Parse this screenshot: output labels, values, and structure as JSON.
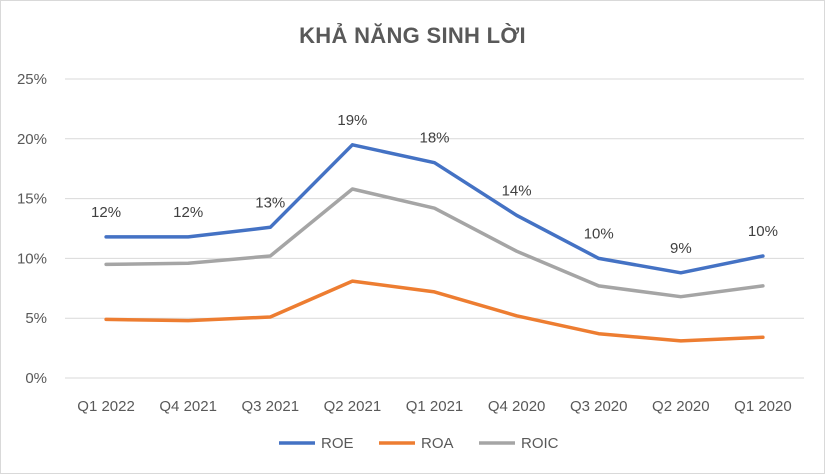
{
  "chart_data": {
    "type": "line",
    "title": "KHẢ NĂNG SINH LỜI",
    "categories": [
      "Q1 2022",
      "Q4 2021",
      "Q3 2021",
      "Q2 2021",
      "Q1 2021",
      "Q4 2020",
      "Q3 2020",
      "Q2 2020",
      "Q1 2020"
    ],
    "ylim": [
      0,
      25
    ],
    "yticks": [
      "0%",
      "5%",
      "10%",
      "15%",
      "20%",
      "25%"
    ],
    "ytick_values": [
      0,
      5,
      10,
      15,
      20,
      25
    ],
    "grid": true,
    "legend": "bottom",
    "series": [
      {
        "name": "ROE",
        "color": "#4472C4",
        "values": [
          11.8,
          11.8,
          12.6,
          19.5,
          18.0,
          13.6,
          10.0,
          8.8,
          10.2
        ],
        "labels": [
          "12%",
          "12%",
          "13%",
          "19%",
          "18%",
          "14%",
          "10%",
          "9%",
          "10%"
        ]
      },
      {
        "name": "ROA",
        "color": "#ED7D31",
        "values": [
          4.9,
          4.8,
          5.1,
          8.1,
          7.2,
          5.2,
          3.7,
          3.1,
          3.4
        ]
      },
      {
        "name": "ROIC",
        "color": "#A5A5A5",
        "values": [
          9.5,
          9.6,
          10.2,
          15.8,
          14.2,
          10.6,
          7.7,
          6.8,
          7.7
        ]
      }
    ]
  }
}
